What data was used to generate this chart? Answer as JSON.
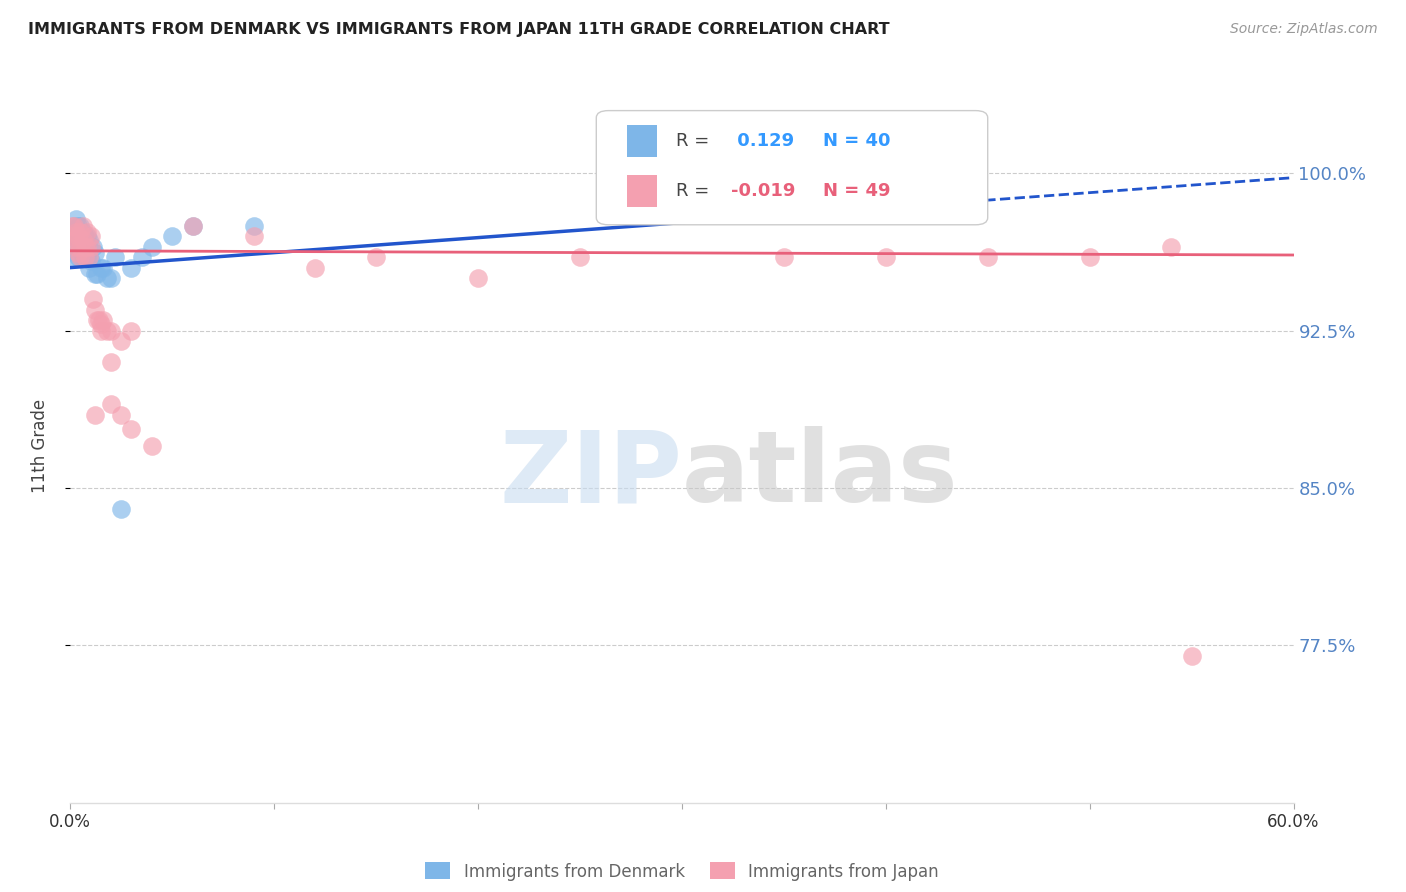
{
  "title": "IMMIGRANTS FROM DENMARK VS IMMIGRANTS FROM JAPAN 11TH GRADE CORRELATION CHART",
  "source": "Source: ZipAtlas.com",
  "ylabel": "11th Grade",
  "ytick_labels": [
    "100.0%",
    "92.5%",
    "85.0%",
    "77.5%"
  ],
  "ytick_values": [
    1.0,
    0.925,
    0.85,
    0.775
  ],
  "xlim": [
    0.0,
    0.6
  ],
  "ylim": [
    0.7,
    1.04
  ],
  "legend_r_denmark": "0.129",
  "legend_n_denmark": "40",
  "legend_r_japan": "-0.019",
  "legend_n_japan": "49",
  "denmark_color": "#7EB6E8",
  "japan_color": "#F4A0B0",
  "denmark_line_color": "#2255CC",
  "japan_line_color": "#E8607A",
  "denmark_x": [
    0.001,
    0.001,
    0.002,
    0.002,
    0.003,
    0.003,
    0.003,
    0.004,
    0.004,
    0.004,
    0.005,
    0.005,
    0.005,
    0.006,
    0.006,
    0.006,
    0.007,
    0.007,
    0.007,
    0.008,
    0.008,
    0.009,
    0.009,
    0.01,
    0.011,
    0.012,
    0.012,
    0.013,
    0.015,
    0.016,
    0.018,
    0.02,
    0.022,
    0.025,
    0.03,
    0.035,
    0.04,
    0.05,
    0.06,
    0.09
  ],
  "denmark_y": [
    0.96,
    0.97,
    0.972,
    0.975,
    0.978,
    0.97,
    0.965,
    0.975,
    0.968,
    0.96,
    0.975,
    0.97,
    0.965,
    0.972,
    0.968,
    0.96,
    0.97,
    0.965,
    0.96,
    0.97,
    0.96,
    0.968,
    0.955,
    0.958,
    0.965,
    0.962,
    0.952,
    0.952,
    0.955,
    0.955,
    0.95,
    0.95,
    0.96,
    0.84,
    0.955,
    0.96,
    0.965,
    0.97,
    0.975,
    0.975
  ],
  "japan_x": [
    0.001,
    0.001,
    0.002,
    0.002,
    0.003,
    0.003,
    0.004,
    0.004,
    0.005,
    0.005,
    0.005,
    0.006,
    0.006,
    0.007,
    0.007,
    0.008,
    0.008,
    0.009,
    0.01,
    0.01,
    0.011,
    0.012,
    0.013,
    0.014,
    0.015,
    0.016,
    0.018,
    0.02,
    0.025,
    0.03,
    0.04,
    0.06,
    0.09,
    0.12,
    0.15,
    0.2,
    0.25,
    0.35,
    0.4,
    0.45,
    0.5,
    0.54,
    0.55,
    0.02,
    0.025,
    0.03,
    0.012,
    0.015,
    0.02
  ],
  "japan_y": [
    0.975,
    0.97,
    0.975,
    0.968,
    0.972,
    0.965,
    0.97,
    0.962,
    0.972,
    0.965,
    0.96,
    0.975,
    0.968,
    0.965,
    0.96,
    0.972,
    0.965,
    0.96,
    0.97,
    0.965,
    0.94,
    0.935,
    0.93,
    0.93,
    0.928,
    0.93,
    0.925,
    0.925,
    0.92,
    0.925,
    0.87,
    0.975,
    0.97,
    0.955,
    0.96,
    0.95,
    0.96,
    0.96,
    0.96,
    0.96,
    0.96,
    0.965,
    0.77,
    0.89,
    0.885,
    0.878,
    0.885,
    0.925,
    0.91
  ],
  "watermark_zip": "ZIP",
  "watermark_atlas": "atlas",
  "background_color": "#FFFFFF",
  "grid_color": "#CCCCCC",
  "denmark_trendline_x": [
    0.0,
    0.42
  ],
  "denmark_trendline_y": [
    0.955,
    0.985
  ],
  "japan_trendline_x": [
    0.0,
    0.6
  ],
  "japan_trendline_y": [
    0.963,
    0.961
  ]
}
